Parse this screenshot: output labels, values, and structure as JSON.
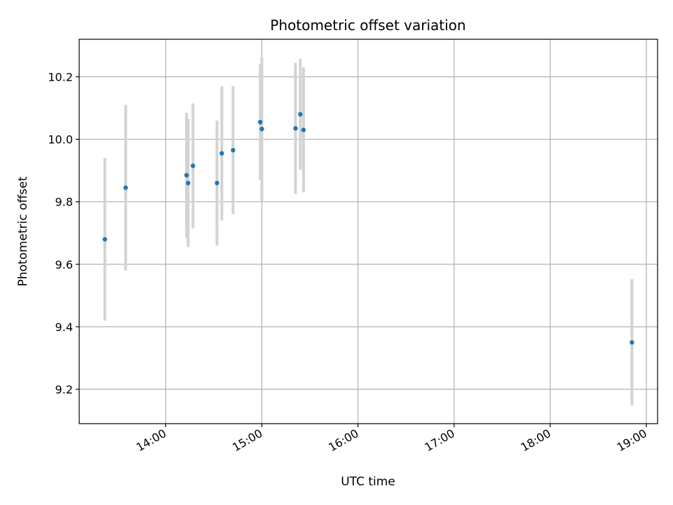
{
  "chart_data": {
    "type": "scatter",
    "title": "Photometric offset variation",
    "xlabel": "UTC time",
    "ylabel": "Photometric offset",
    "x_ticks": [
      "14:00",
      "15:00",
      "16:00",
      "17:00",
      "18:00",
      "19:00"
    ],
    "y_ticks": [
      "9.2",
      "9.4",
      "9.6",
      "9.8",
      "10.0",
      "10.2"
    ],
    "xlim": [
      "13:06",
      "19:07"
    ],
    "ylim": [
      9.09,
      10.32
    ],
    "grid": true,
    "series": [
      {
        "marker_color": "#1f77b4",
        "errorbar_color": "#d3d3d3",
        "points": [
          {
            "x": "13:22",
            "y": 9.68,
            "err": 0.26
          },
          {
            "x": "13:35",
            "y": 9.845,
            "err": 0.265
          },
          {
            "x": "14:13",
            "y": 9.885,
            "err": 0.2
          },
          {
            "x": "14:14",
            "y": 9.86,
            "err": 0.205
          },
          {
            "x": "14:17",
            "y": 9.915,
            "err": 0.2
          },
          {
            "x": "14:32",
            "y": 9.86,
            "err": 0.2
          },
          {
            "x": "14:35",
            "y": 9.955,
            "err": 0.215
          },
          {
            "x": "14:42",
            "y": 9.965,
            "err": 0.205
          },
          {
            "x": "14:59",
            "y": 10.055,
            "err": 0.185
          },
          {
            "x": "15:00",
            "y": 10.033,
            "err": 0.23
          },
          {
            "x": "15:21",
            "y": 10.035,
            "err": 0.21
          },
          {
            "x": "15:24",
            "y": 10.08,
            "err": 0.178
          },
          {
            "x": "15:26",
            "y": 10.03,
            "err": 0.2
          },
          {
            "x": "18:51",
            "y": 9.35,
            "err": 0.202
          }
        ]
      }
    ]
  }
}
